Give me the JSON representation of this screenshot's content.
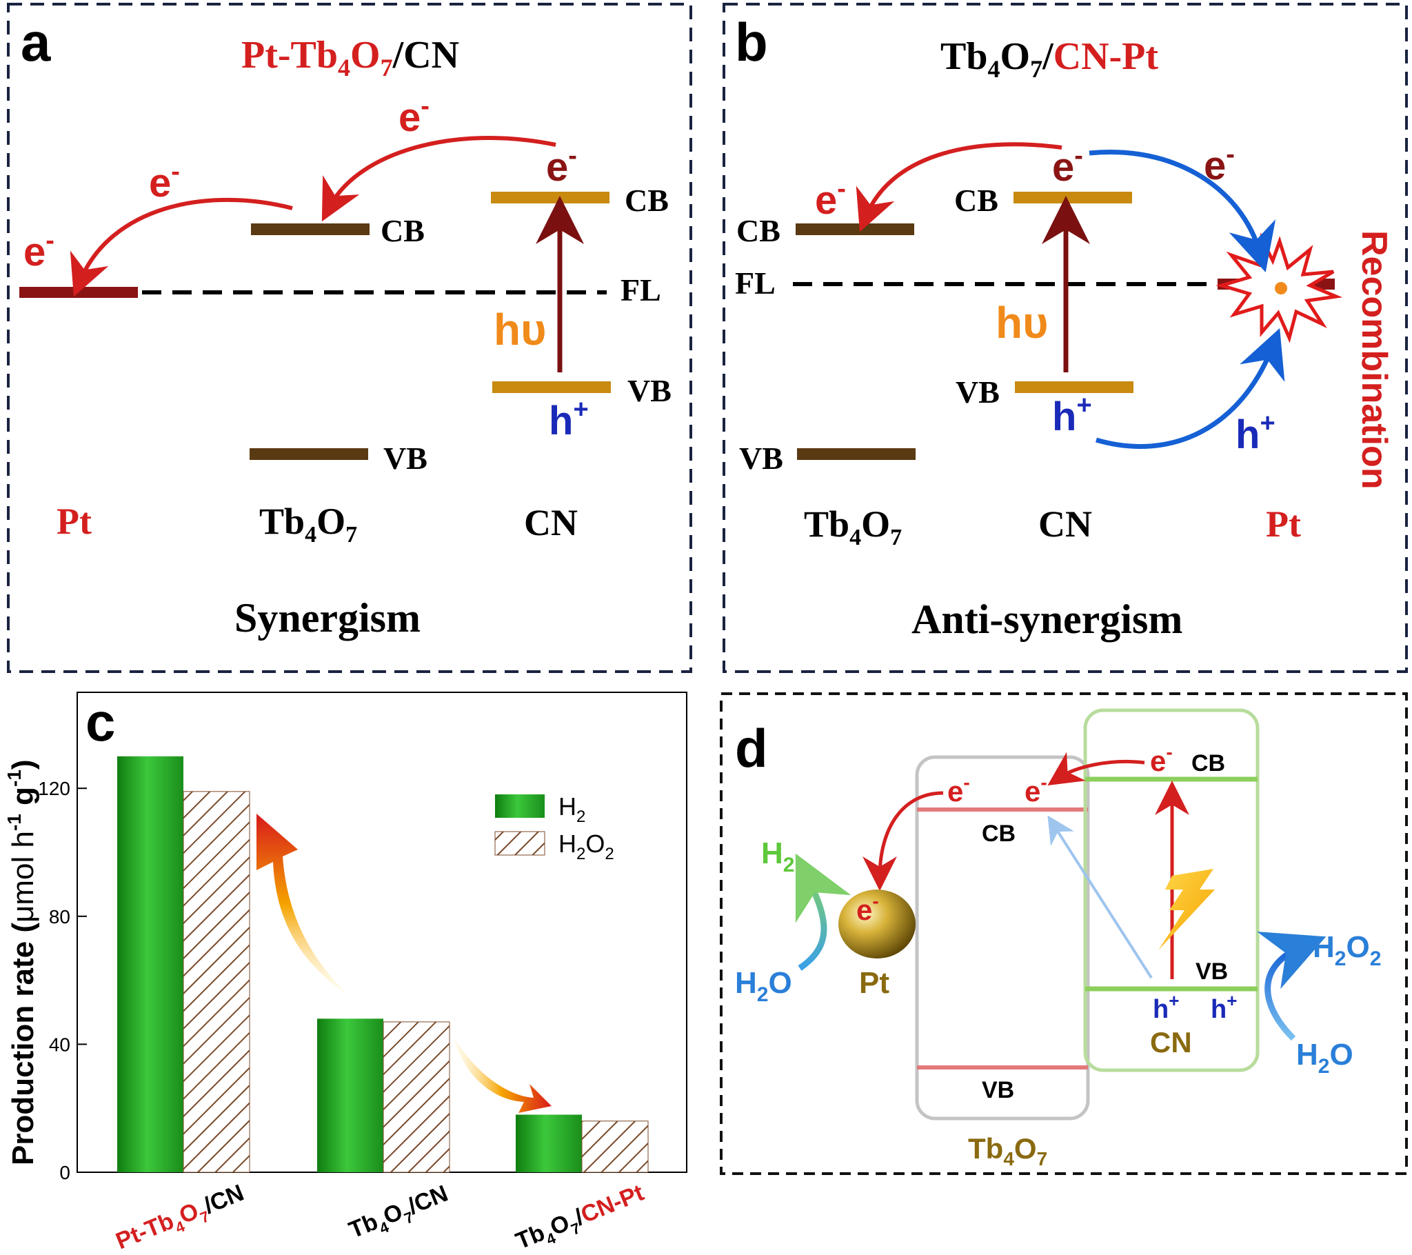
{
  "panel_a": {
    "letter": "a",
    "title_red": "Pt-Tb",
    "title_sub4": "4",
    "title_o": "O",
    "title_sub7": "7",
    "title_black": "/CN",
    "e_label": "e",
    "minus": "-",
    "cb": "CB",
    "vb": "VB",
    "fl": "FL",
    "hv": "hυ",
    "h_label": "h",
    "plus": "+",
    "pt": "Pt",
    "tb": "Tb",
    "sub4": "4",
    "o": "O",
    "sub7": "7",
    "cn": "CN",
    "caption": "Synergism"
  },
  "panel_b": {
    "letter": "b",
    "title_black": "Tb",
    "title_sub4": "4",
    "title_o": "O",
    "title_sub7": "7",
    "title_slash": "/",
    "title_red": "CN-Pt",
    "e_label": "e",
    "minus": "-",
    "cb": "CB",
    "vb": "VB",
    "fl": "FL",
    "hv": "hυ",
    "h_label": "h",
    "plus": "+",
    "tb": "Tb",
    "sub4": "4",
    "o": "O",
    "sub7": "7",
    "cn": "CN",
    "pt": "Pt",
    "recombination": "Recombination",
    "caption": "Anti-synergism"
  },
  "panel_c": {
    "letter": "c",
    "chart_data": {
      "type": "bar",
      "categories": [
        "Pt-Tb4O7/CN",
        "Tb4O7/CN",
        "Tb4O7/CN-Pt"
      ],
      "series": [
        {
          "name": "H2",
          "values": [
            130,
            48,
            18
          ],
          "color": "#2aa02a"
        },
        {
          "name": "H2O2",
          "values": [
            119,
            47,
            16
          ],
          "color": "#8b5a2b",
          "pattern": "hatched"
        }
      ],
      "ylabel": "Production rate (μmol h-1 g-1)",
      "ylim": [
        0,
        150
      ],
      "yticks": [
        0,
        40,
        80,
        120
      ]
    },
    "ylabel_main": "Production rate (",
    "ylabel_mu": "μmol h",
    "ylabel_exp1": "-1",
    "ylabel_g": " g",
    "ylabel_exp2": "-1",
    "ylabel_close": ")",
    "legend_h2_h": "H",
    "legend_h2_sub": "2",
    "legend_h2o2_h": "H",
    "legend_h2o2_sub1": "2",
    "legend_h2o2_o": "O",
    "legend_h2o2_sub2": "2",
    "cat1_red": "Pt-Tb",
    "cat1_sub4": "4",
    "cat1_o": "O",
    "cat1_sub7": "7",
    "cat1_black": "/CN",
    "cat2_tb": "Tb",
    "cat2_sub4": "4",
    "cat2_o": "O",
    "cat2_sub7": "7",
    "cat2_cn": "/CN",
    "cat3_tb": "Tb",
    "cat3_sub4": "4",
    "cat3_o": "O",
    "cat3_sub7": "7",
    "cat3_slash": "/",
    "cat3_red": "CN-Pt"
  },
  "panel_d": {
    "letter": "d",
    "e_label": "e",
    "minus": "-",
    "cb": "CB",
    "vb": "VB",
    "h_label": "h",
    "plus": "+",
    "h2_h": "H",
    "h2_sub": "2",
    "h2o_h": "H",
    "h2o_sub": "2",
    "h2o_o": "O",
    "h2o2_h": "H",
    "h2o2_sub1": "2",
    "h2o2_o": "O",
    "h2o2_sub2": "2",
    "pt": "Pt",
    "cn": "CN",
    "tb": "Tb",
    "sub4": "4",
    "o": "O",
    "sub7": "7"
  }
}
